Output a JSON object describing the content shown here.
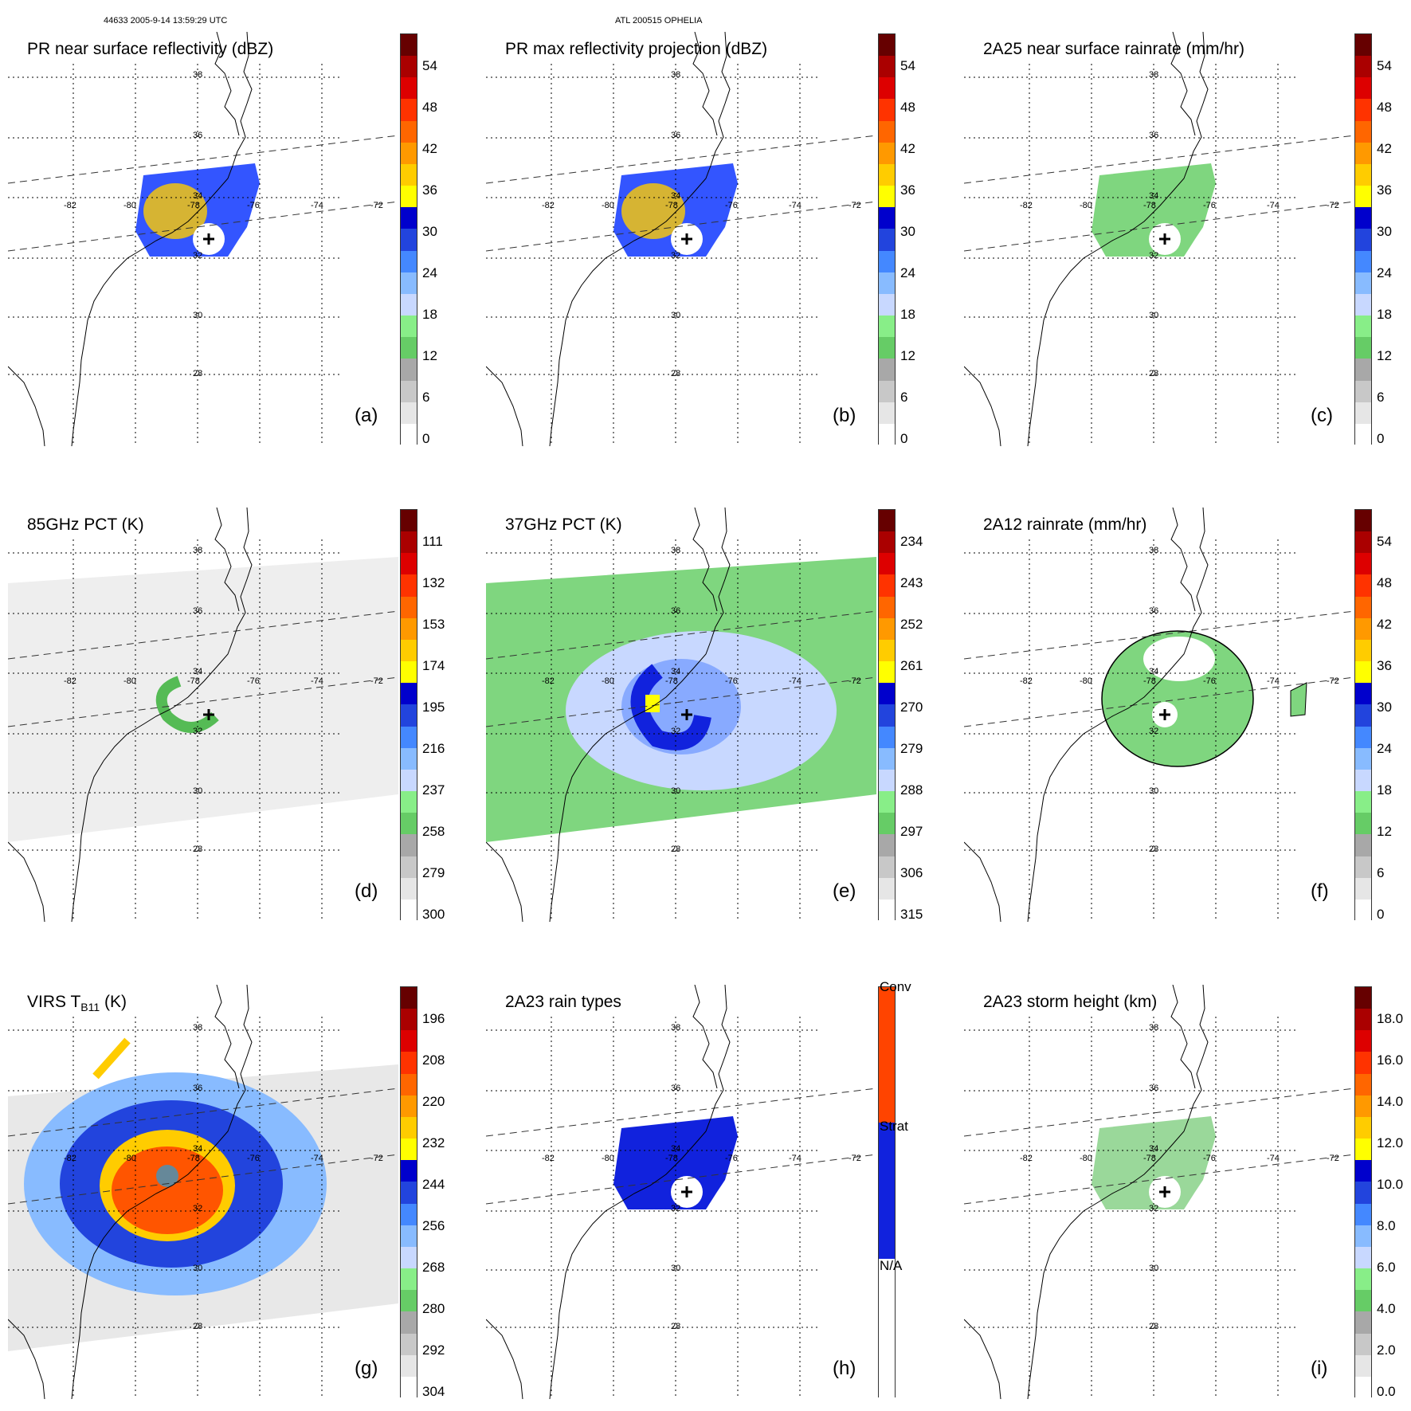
{
  "header": {
    "left": "44633 2005-9-14 13:59:29 UTC",
    "center": "ATL 200515 OPHELIA"
  },
  "map_labels": {
    "lon": [
      "-82",
      "-80",
      "-78",
      "-76",
      "-74",
      "-72"
    ],
    "lat": [
      "38",
      "36",
      "34",
      "32",
      "30",
      "28"
    ]
  },
  "panels": [
    {
      "id": "a",
      "title": "PR near surface reflectivity (dBZ)",
      "label": "(a)",
      "ticks": [
        "54",
        "48",
        "42",
        "36",
        "30",
        "24",
        "18",
        "12",
        "6",
        "0"
      ],
      "field": "pr"
    },
    {
      "id": "b",
      "title": "PR max reflectivity projection (dBZ)",
      "label": "(b)",
      "ticks": [
        "54",
        "48",
        "42",
        "36",
        "30",
        "24",
        "18",
        "12",
        "6",
        "0"
      ],
      "field": "pr"
    },
    {
      "id": "c",
      "title": "2A25 near surface rainrate (mm/hr)",
      "label": "(c)",
      "ticks": [
        "54",
        "48",
        "42",
        "36",
        "30",
        "24",
        "18",
        "12",
        "6",
        "0"
      ],
      "field": "rain"
    },
    {
      "id": "d",
      "title": "85GHz PCT (K)",
      "label": "(d)",
      "ticks": [
        "111",
        "132",
        "153",
        "174",
        "195",
        "216",
        "237",
        "258",
        "279",
        "300"
      ],
      "field": "pct85"
    },
    {
      "id": "e",
      "title": "37GHz PCT (K)",
      "label": "(e)",
      "ticks": [
        "234",
        "243",
        "252",
        "261",
        "270",
        "279",
        "288",
        "297",
        "306",
        "315"
      ],
      "field": "pct37"
    },
    {
      "id": "f",
      "title": "2A12 rainrate (mm/hr)",
      "label": "(f)",
      "ticks": [
        "54",
        "48",
        "42",
        "36",
        "30",
        "24",
        "18",
        "12",
        "6",
        "0"
      ],
      "field": "rain12"
    },
    {
      "id": "g",
      "title": "VIRS T",
      "title_sub": "B11",
      "title_end": " (K)",
      "label": "(g)",
      "ticks": [
        "196",
        "208",
        "220",
        "232",
        "244",
        "256",
        "268",
        "280",
        "292",
        "304"
      ],
      "field": "virs"
    },
    {
      "id": "h",
      "title": "2A23 rain types",
      "label": "(h)",
      "ticks": [
        "Conv",
        "Strat",
        "N/A"
      ],
      "field": "types"
    },
    {
      "id": "i",
      "title": "2A23 storm height (km)",
      "label": "(i)",
      "ticks": [
        "18.0",
        "16.0",
        "14.0",
        "12.0",
        "10.0",
        "8.0",
        "6.0",
        "4.0",
        "2.0",
        "0.0"
      ],
      "field": "height"
    }
  ],
  "colors": {
    "scale": [
      "#ffffff",
      "#e6e6e6",
      "#c8c8c8",
      "#a8a8a8",
      "#66cc66",
      "#88ee88",
      "#c8d8ff",
      "#88bbff",
      "#4488ff",
      "#2244dd",
      "#0000cc",
      "#ffff00",
      "#ffcc00",
      "#ff9900",
      "#ff6600",
      "#ff3300",
      "#dd0000",
      "#aa0000",
      "#660000"
    ],
    "conv": "#ff4400",
    "strat": "#1122dd",
    "na": "#ffffff"
  }
}
